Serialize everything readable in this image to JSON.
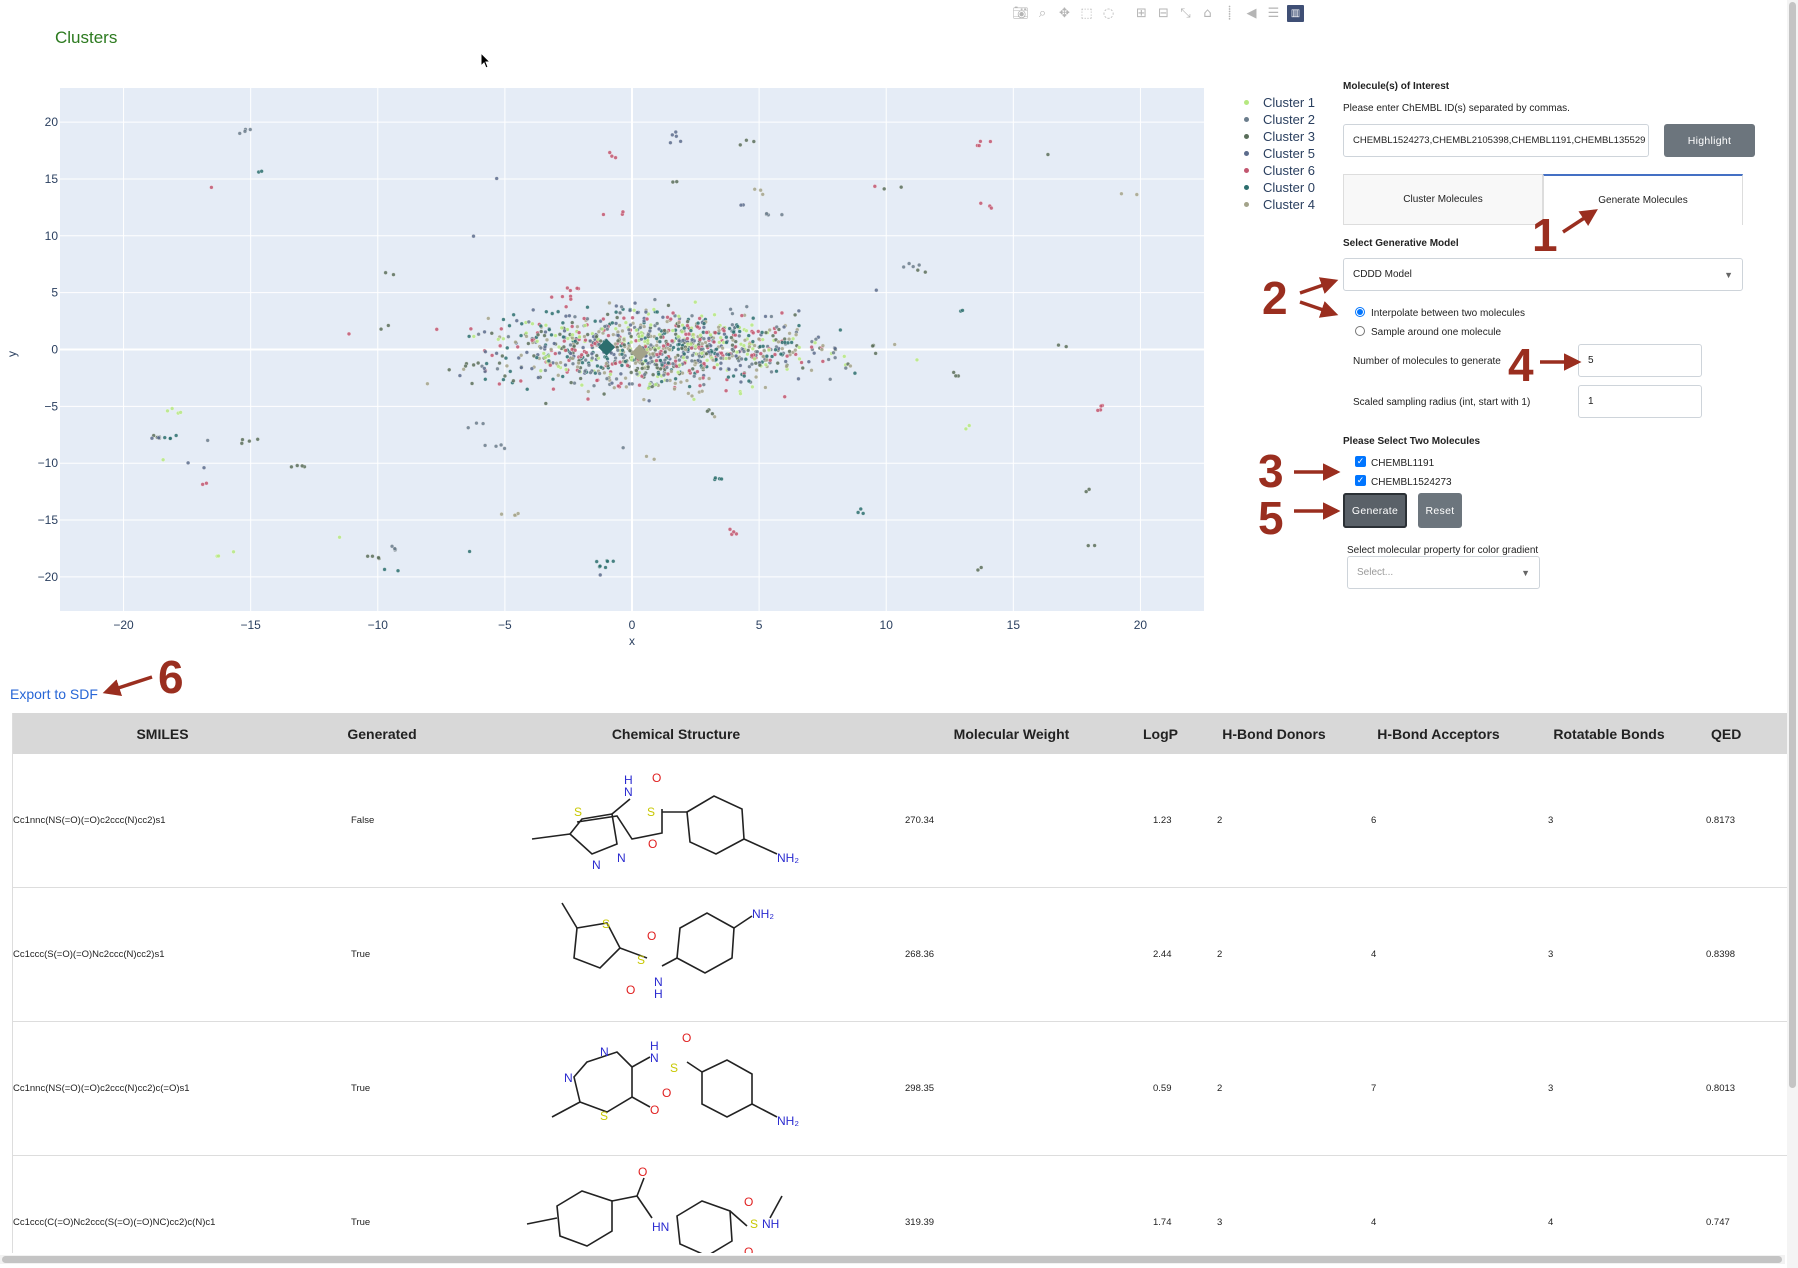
{
  "header": {
    "title": "Clusters"
  },
  "modebar": {
    "icons": [
      "camera-icon",
      "zoom-icon",
      "pan-icon",
      "box-select-icon",
      "lasso-select-icon",
      "zoom-in-icon",
      "zoom-out-icon",
      "autoscale-icon",
      "reset-axes-icon",
      "spike-lines-icon",
      "hover-closest-icon",
      "hover-compare-icon",
      "plotly-logo-icon"
    ]
  },
  "plot": {
    "x_label": "x",
    "y_label": "y",
    "x_ticks": [
      "−20",
      "−15",
      "−10",
      "−5",
      "0",
      "5",
      "10",
      "15",
      "20"
    ],
    "y_ticks": [
      "20",
      "15",
      "10",
      "5",
      "0",
      "−5",
      "−10",
      "−15",
      "−20"
    ],
    "x_tick_values": [
      -20,
      -15,
      -10,
      -5,
      0,
      5,
      10,
      15,
      20
    ],
    "y_tick_values": [
      20,
      15,
      10,
      5,
      0,
      -5,
      -10,
      -15,
      -20
    ],
    "x_range": [
      -22.5,
      22.5
    ],
    "y_range": [
      -23,
      23
    ],
    "background": "#e5ecf6",
    "legend": [
      {
        "name": "Cluster 1",
        "color": "#b6e880"
      },
      {
        "name": "Cluster 2",
        "color": "#6b7d8c"
      },
      {
        "name": "Cluster 3",
        "color": "#5a6e5a"
      },
      {
        "name": "Cluster 5",
        "color": "#5c6c8c"
      },
      {
        "name": "Cluster 6",
        "color": "#c2566f"
      },
      {
        "name": "Cluster 0",
        "color": "#2c6e6e"
      },
      {
        "name": "Cluster 4",
        "color": "#a3a38a"
      }
    ]
  },
  "panel": {
    "interest_title": "Molecule(s) of Interest",
    "interest_help": "Please enter ChEMBL ID(s) separated by commas.",
    "interest_value": "CHEMBL1524273,CHEMBL2105398,CHEMBL1191,CHEMBL135529",
    "highlight_button": "Highlight",
    "tabs": [
      "Cluster Molecules",
      "Generate Molecules"
    ],
    "active_tab": "Generate Molecules",
    "model_title": "Select Generative Model",
    "model_value": "CDDD Model",
    "radio_interpolate": "Interpolate between two molecules",
    "radio_sample": "Sample around one molecule",
    "num_label": "Number of molecules to generate",
    "num_value": "5",
    "radius_label": "Scaled sampling radius (int, start with 1)",
    "radius_value": "1",
    "select_two_title": "Please Select Two Molecules",
    "checkbox_1": "CHEMBL1191",
    "checkbox_2": "CHEMBL1524273",
    "generate_button": "Generate",
    "reset_button": "Reset",
    "property_label": "Select molecular property for color gradient",
    "property_placeholder": "Select..."
  },
  "annotations": [
    "1",
    "2",
    "3",
    "4",
    "5",
    "6"
  ],
  "export_link": "Export to SDF",
  "table": {
    "headers": [
      "SMILES",
      "Generated",
      "Chemical Structure",
      "Molecular Weight",
      "LogP",
      "H-Bond Donors",
      "H-Bond Acceptors",
      "Rotatable Bonds",
      "QED"
    ],
    "rows": [
      {
        "smiles": "Cc1nnc(NS(=O)(=O)c2ccc(N)cc2)s1",
        "generated": "False",
        "mw": "270.34",
        "logp": "1.23",
        "hbd": "2",
        "hba": "6",
        "rot": "3",
        "qed": "0.8173"
      },
      {
        "smiles": "Cc1ccc(S(=O)(=O)Nc2ccc(N)cc2)s1",
        "generated": "True",
        "mw": "268.36",
        "logp": "2.44",
        "hbd": "2",
        "hba": "4",
        "rot": "3",
        "qed": "0.8398"
      },
      {
        "smiles": "Cc1nnc(NS(=O)(=O)c2ccc(N)cc2)c(=O)s1",
        "generated": "True",
        "mw": "298.35",
        "logp": "0.59",
        "hbd": "2",
        "hba": "7",
        "rot": "3",
        "qed": "0.8013"
      },
      {
        "smiles": "Cc1ccc(C(=O)Nc2ccc(S(=O)(=O)NC)cc2)c(N)c1",
        "generated": "True",
        "mw": "319.39",
        "logp": "1.74",
        "hbd": "3",
        "hba": "4",
        "rot": "4",
        "qed": "0.747"
      }
    ]
  }
}
